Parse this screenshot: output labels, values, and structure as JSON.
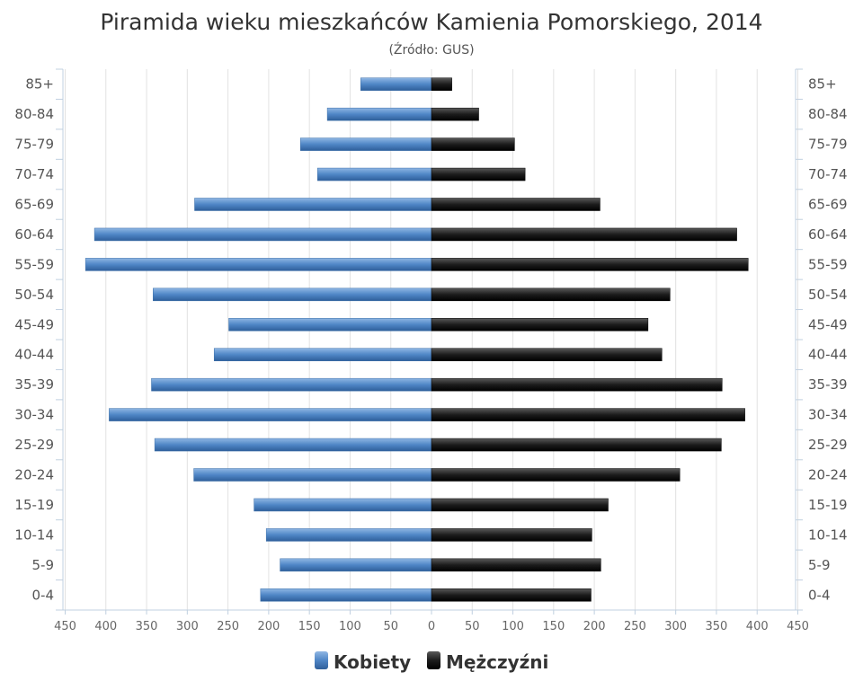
{
  "chart_data": {
    "type": "bar",
    "orientation": "horizontal",
    "title": "Piramida wieku mieszkańców Kamienia Pomorskiego, 2014",
    "subtitle": "(Źródło: GUS)",
    "categories": [
      "85+",
      "80-84",
      "75-79",
      "70-74",
      "65-69",
      "60-64",
      "55-59",
      "50-54",
      "45-49",
      "40-44",
      "35-39",
      "30-34",
      "25-29",
      "20-24",
      "15-19",
      "10-14",
      "5-9",
      "0-4"
    ],
    "series": [
      {
        "name": "Kobiety",
        "color": "#4f86c6",
        "values": [
          87,
          128,
          161,
          140,
          291,
          414,
          425,
          342,
          249,
          267,
          344,
          396,
          340,
          292,
          218,
          203,
          186,
          210
        ]
      },
      {
        "name": "Mężczyźni",
        "color": "#1a1a1a",
        "values": [
          25,
          58,
          102,
          115,
          207,
          375,
          389,
          293,
          266,
          283,
          357,
          385,
          356,
          305,
          217,
          197,
          208,
          196
        ]
      }
    ],
    "xlim": [
      -450,
      450
    ],
    "xticks": [
      "450",
      "400",
      "350",
      "300",
      "250",
      "200",
      "150",
      "100",
      "50",
      "0",
      "50",
      "100",
      "150",
      "200",
      "250",
      "300",
      "350",
      "400",
      "450"
    ],
    "grid": true,
    "legend_position": "bottom"
  }
}
